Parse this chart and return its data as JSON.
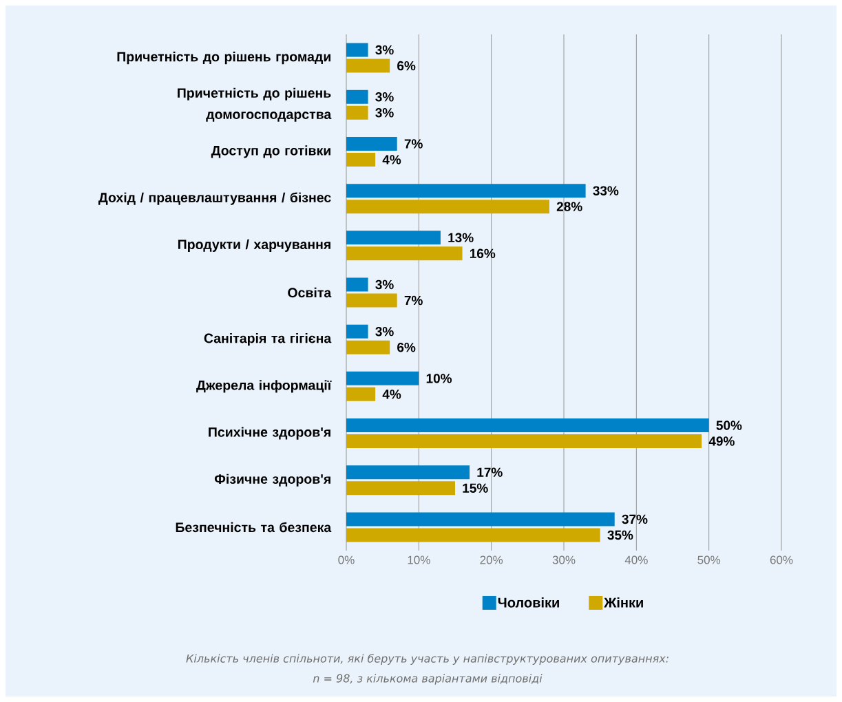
{
  "chart_data": {
    "type": "bar",
    "orientation": "horizontal",
    "categories": [
      "Причетність до рішень громади",
      "Причетність до рішень домогосподарства",
      "Доступ до готівки",
      "Дохід / працевлаштування / бізнес",
      "Продукти / харчування",
      "Освіта",
      "Санітарія та гігієна",
      "Джерела інформації",
      "Психічне здоров'я",
      "Фізичне здоров'я",
      "Безпечність та безпека"
    ],
    "series": [
      {
        "name": "Чоловіки",
        "color": "#0082c8",
        "values": [
          3,
          3,
          7,
          33,
          13,
          3,
          3,
          10,
          50,
          17,
          37
        ],
        "value_labels": [
          "3%",
          "3%",
          "7%",
          "33%",
          "13%",
          "3%",
          "3%",
          "10%",
          "50%",
          "17%",
          "37%"
        ]
      },
      {
        "name": "Жінки",
        "color": "#cfa800",
        "values": [
          6,
          3,
          4,
          28,
          16,
          7,
          6,
          4,
          49,
          15,
          35
        ],
        "value_labels": [
          "6%",
          "3%",
          "4%",
          "28%",
          "16%",
          "7%",
          "6%",
          "4%",
          "49%",
          "15%",
          "35%"
        ]
      }
    ],
    "xlim": [
      0,
      60
    ],
    "xticks": [
      {
        "value": 0,
        "label": "0%"
      },
      {
        "value": 10,
        "label": "10%"
      },
      {
        "value": 20,
        "label": "20%"
      },
      {
        "value": 30,
        "label": "30%"
      },
      {
        "value": 40,
        "label": "40%"
      },
      {
        "value": 50,
        "label": "50%"
      },
      {
        "value": 60,
        "label": "60%"
      }
    ],
    "grid": "x",
    "legend": "bottom",
    "annotations": [
      "Кількість членів спільноти, які беруть участь у напівструктурованих опитуваннях:",
      "n = 98, з кількома варіантами відповіді"
    ]
  }
}
